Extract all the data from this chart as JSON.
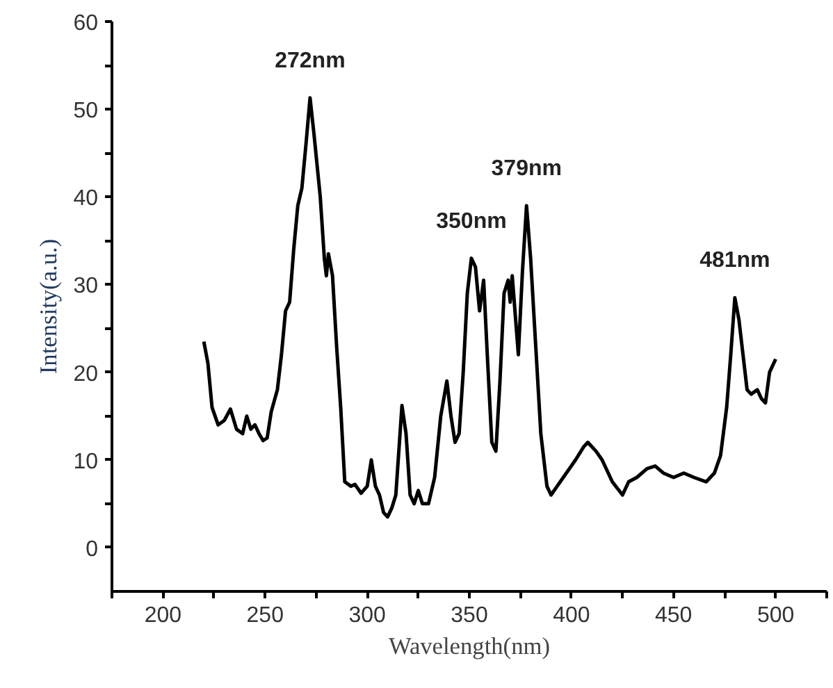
{
  "chart_data": {
    "type": "line",
    "xlabel": "Wavelength(nm)",
    "ylabel": "Intensity(a.u.)",
    "x": [
      220,
      222,
      224,
      227,
      230,
      233,
      236,
      239,
      241,
      243,
      245,
      247,
      249,
      251,
      253,
      256,
      258,
      260,
      262,
      264,
      266,
      268,
      270,
      272,
      274,
      277,
      279,
      280,
      281,
      283,
      285,
      287,
      289,
      292,
      294,
      297,
      300,
      302,
      304,
      306,
      308,
      310,
      312,
      314,
      317,
      319,
      321,
      323,
      325,
      327,
      330,
      333,
      336,
      339,
      341,
      343,
      345,
      347,
      349,
      351,
      353,
      355,
      357,
      359,
      361,
      363,
      365,
      367,
      369,
      370,
      371,
      373,
      374,
      376,
      378,
      380,
      382,
      385,
      388,
      390,
      393,
      396,
      399,
      402,
      406,
      408,
      412,
      415,
      420,
      425,
      428,
      432,
      437,
      441,
      445,
      450,
      455,
      460,
      466,
      470,
      473,
      476,
      478,
      480,
      482,
      484,
      486,
      488,
      491,
      493,
      495,
      497,
      500
    ],
    "series": [
      {
        "color": "#000000",
        "values": [
          23.5,
          21,
          16,
          14,
          14.5,
          15.8,
          13.5,
          13,
          15,
          13.5,
          14,
          13,
          12.2,
          12.5,
          15.5,
          18,
          22,
          27,
          28,
          34,
          39,
          41,
          46,
          51.3,
          47,
          40,
          33,
          31,
          33.5,
          31,
          23,
          16,
          7.5,
          7,
          7.2,
          6.2,
          7,
          10,
          7,
          6,
          4,
          3.5,
          4.5,
          6,
          16.2,
          13,
          6,
          5,
          6.5,
          5,
          5,
          8,
          15,
          19,
          15,
          12,
          13,
          20,
          29,
          33,
          32,
          27,
          30.5,
          21,
          12,
          11,
          19,
          29,
          30.5,
          28,
          31,
          25,
          22,
          31.5,
          39,
          33,
          25,
          13,
          7,
          6,
          7,
          8,
          9,
          10,
          11.5,
          12,
          11,
          10,
          7.5,
          6,
          7.5,
          8,
          9,
          9.3,
          8.5,
          8,
          8.5,
          8,
          7.5,
          8.5,
          10.5,
          16,
          22,
          28.5,
          26,
          22,
          18,
          17.5,
          18,
          17,
          16.5,
          20,
          21.5
        ]
      }
    ],
    "xlim": [
      175,
      525
    ],
    "xticks": [
      {
        "value": 175,
        "label": null
      },
      200,
      {
        "value": 225,
        "label": null
      },
      250,
      {
        "value": 275,
        "label": null
      },
      300,
      {
        "value": 325,
        "label": null
      },
      350,
      {
        "value": 375,
        "label": null
      },
      400,
      {
        "value": 425,
        "label": null
      },
      450,
      {
        "value": 475,
        "label": null
      },
      500,
      {
        "value": 525,
        "label": null
      }
    ],
    "ylim": [
      -5,
      60
    ],
    "yticks": [
      0,
      {
        "value": 5,
        "label": null
      },
      10,
      {
        "value": 15,
        "label": null
      },
      20,
      {
        "value": 25,
        "label": null
      },
      30,
      {
        "value": 35,
        "label": null
      },
      40,
      {
        "value": 45,
        "label": null
      },
      50,
      {
        "value": 55,
        "label": null
      },
      60
    ],
    "annotations": [
      {
        "text": "272nm",
        "x": 272,
        "y": 51.3
      },
      {
        "text": "350nm",
        "x": 351,
        "y": 33
      },
      {
        "text": "379nm",
        "x": 378,
        "y": 39
      },
      {
        "text": "481nm",
        "x": 480,
        "y": 28.5
      }
    ],
    "grid": false,
    "marker": "none",
    "line_style": "solid"
  }
}
